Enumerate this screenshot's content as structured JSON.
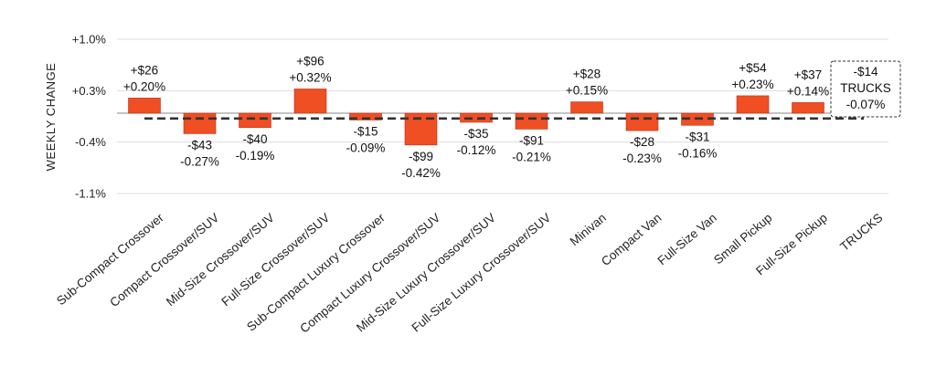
{
  "chart_data": {
    "type": "bar",
    "ylabel": "WEEKLY CHANGE",
    "y_ticks": [
      "+1.0%",
      "+0.3%",
      "-0.4%",
      "-1.1%"
    ],
    "y_tick_values": [
      1.0,
      0.3,
      -0.4,
      -1.1
    ],
    "ylim": [
      -1.1,
      1.0
    ],
    "grid": true,
    "categories": [
      "Sub-Compact Crossover",
      "Compact Crossover/SUV",
      "Mid-Size Crossover/SUV",
      "Full-Size Crossover/SUV",
      "Sub-Compact Luxury Crossover",
      "Compact Luxury Crossover/SUV",
      "Mid-Size Luxury Crossover/SUV",
      "Full-Size Luxury Crossover/SUV",
      "Minivan",
      "Compact Van",
      "Full-Size Van",
      "Small Pickup",
      "Full-Size Pickup",
      "TRUCKS"
    ],
    "values": [
      0.2,
      -0.27,
      -0.19,
      0.32,
      -0.09,
      -0.42,
      -0.12,
      -0.21,
      0.15,
      -0.23,
      -0.16,
      0.23,
      0.14,
      -0.07
    ],
    "dollar_labels": [
      "+$26",
      "-$43",
      "-$40",
      "+$96",
      "-$15",
      "-$99",
      "-$35",
      "-$91",
      "+$28",
      "-$28",
      "-$31",
      "+$54",
      "+$37",
      "-$14"
    ],
    "pct_labels": [
      "+0.20%",
      "-0.27%",
      "-0.19%",
      "+0.32%",
      "-0.09%",
      "-0.42%",
      "-0.12%",
      "-0.21%",
      "+0.15%",
      "-0.23%",
      "-0.16%",
      "+0.23%",
      "+0.14%",
      "-0.07%"
    ],
    "summary": {
      "name": "TRUCKS",
      "dollar": "-$14",
      "pct": "-0.07%",
      "value": -0.07
    },
    "colors": {
      "bar": "#F04E23",
      "bar_stroke": "#B8341A",
      "reference_line": "#333333",
      "grid": "#DDDDDD"
    }
  }
}
